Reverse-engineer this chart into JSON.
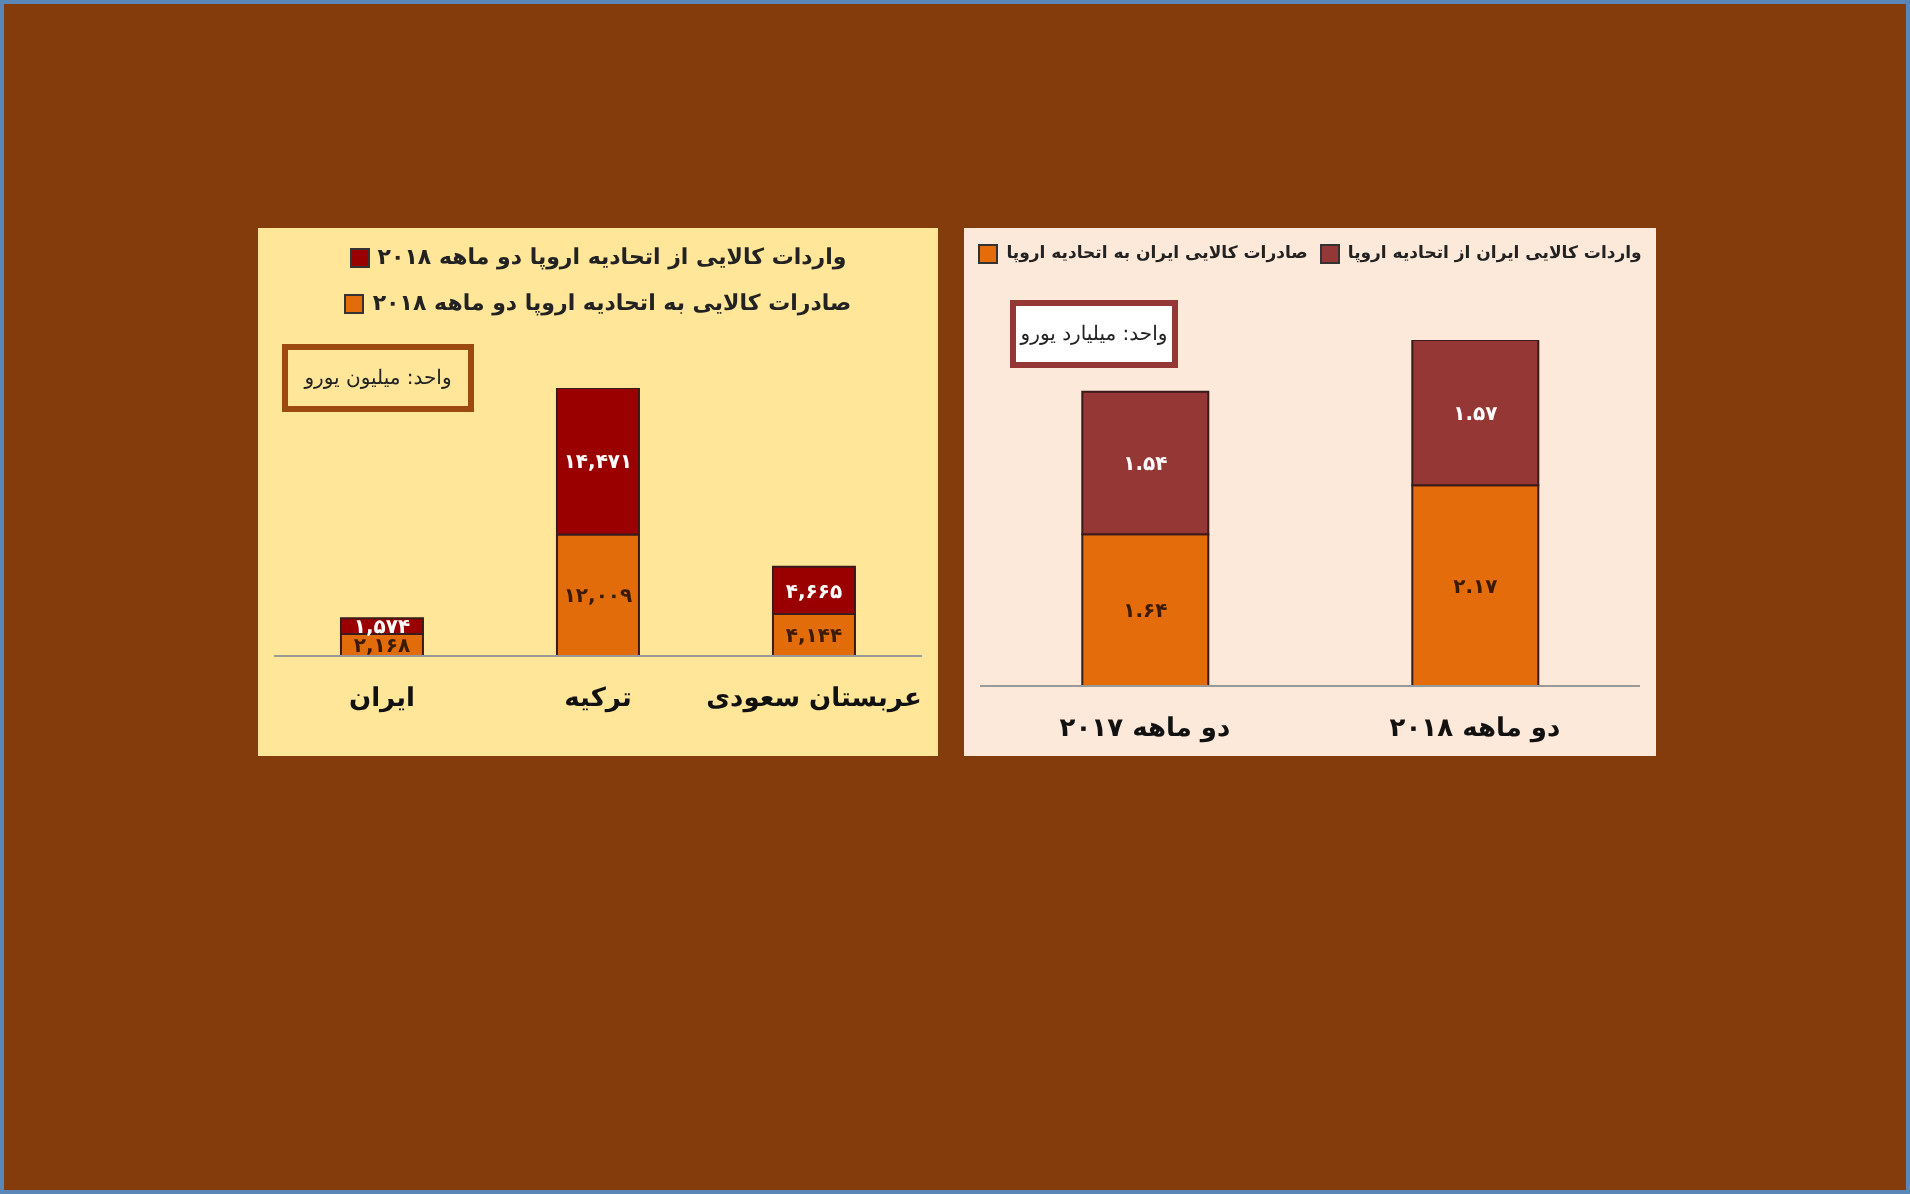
{
  "chart_data": [
    {
      "type": "bar",
      "stacked": true,
      "legend": "top right",
      "grid": false,
      "categories": [
        "ایران",
        "ترکیه",
        "عربستان سعودی"
      ],
      "series": [
        {
          "name": "صادرات کالایی به اتحادیه اروپا دو ماهه ۲۰۱۸",
          "color": "#e36c0a",
          "values": [
            2168,
            12009,
            4144
          ],
          "value_labels": [
            "۲,۱۶۸",
            "۱۲,۰۰۹",
            "۴,۱۴۴"
          ]
        },
        {
          "name": "واردات کالایی از اتحادیه اروپا  دو ماهه ۲۰۱۸",
          "color": "#9b0000",
          "values": [
            1574,
            14471,
            4665
          ],
          "value_labels": [
            "۱,۵۷۴",
            "۱۴,۴۷۱",
            "۴,۶۶۵"
          ]
        }
      ],
      "annotations": [
        "واحد: میلیون یورو"
      ]
    },
    {
      "type": "bar",
      "stacked": true,
      "legend": "top",
      "grid": false,
      "categories": [
        "دو ماهه ۲۰۱۷",
        "دو ماهه ۲۰۱۸"
      ],
      "series": [
        {
          "name": "صادرات کالایی ایران به اتحادیه اروپا",
          "color": "#e46c0a",
          "values": [
            1.64,
            2.17
          ],
          "value_labels": [
            "۱.۶۴",
            "۲.۱۷"
          ]
        },
        {
          "name": "واردات کالایی ایران از اتحادیه اروپا",
          "color": "#953735",
          "values": [
            1.54,
            1.57
          ],
          "value_labels": [
            "۱.۵۴",
            "۱.۵۷"
          ]
        }
      ],
      "annotations": [
        "واحد: میلیارد یورو"
      ]
    }
  ]
}
